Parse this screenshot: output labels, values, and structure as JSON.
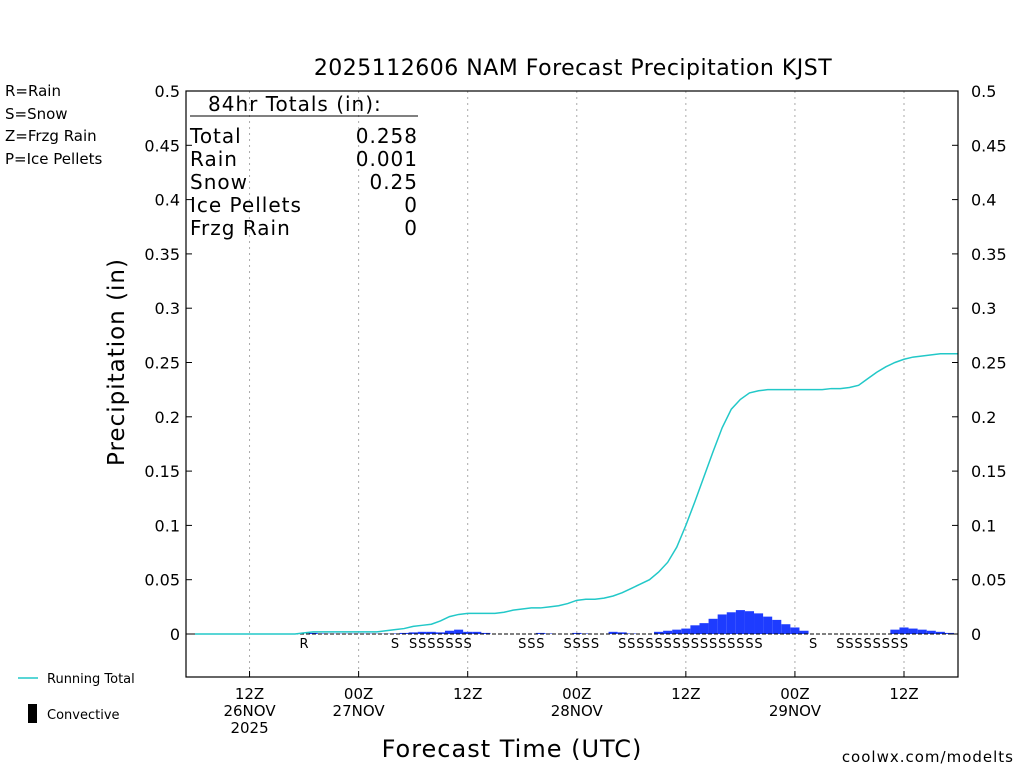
{
  "chart_data": {
    "type": "bar",
    "title": "2025112606 NAM Forecast Precipitation KJST",
    "ylabel": "Precipitation (in)",
    "xlabel": "Forecast Time (UTC)",
    "ylim": [
      -0.04,
      0.5
    ],
    "xlim": [
      0,
      84
    ],
    "yticks": [
      0,
      0.05,
      0.1,
      0.15,
      0.2,
      0.25,
      0.3,
      0.35,
      0.4,
      0.45,
      0.5
    ],
    "ytick_labels": [
      "0",
      "0.05",
      "0.1",
      "0.15",
      "0.2",
      "0.25",
      "0.3",
      "0.35",
      "0.4",
      "0.45",
      "0.5"
    ],
    "xticks": [
      {
        "hour": 6,
        "lines": [
          "12Z",
          "26NOV",
          "2025"
        ]
      },
      {
        "hour": 18,
        "lines": [
          "00Z",
          "27NOV"
        ]
      },
      {
        "hour": 30,
        "lines": [
          "12Z",
          ""
        ]
      },
      {
        "hour": 42,
        "lines": [
          "00Z",
          "28NOV"
        ]
      },
      {
        "hour": 54,
        "lines": [
          "12Z",
          ""
        ]
      },
      {
        "hour": 66,
        "lines": [
          "00Z",
          "29NOV"
        ]
      },
      {
        "hour": 78,
        "lines": [
          "12Z",
          ""
        ]
      }
    ],
    "legend": {
      "rain": {
        "label": "R=Rain",
        "color": "#22cc22"
      },
      "snow": {
        "label": "S=Snow",
        "color": "#4466ee"
      },
      "frzg": {
        "label": "Z=Frzg Rain",
        "color": "#ee8833"
      },
      "ice": {
        "label": "P=Ice Pellets",
        "color": "#ee2299"
      }
    },
    "bottom_legend": {
      "running_total": "Running Total",
      "convective": "Convective"
    },
    "totals": {
      "heading": "84hr Totals (in):",
      "rows": [
        {
          "label": "Total",
          "value": "0.258"
        },
        {
          "label": "Rain",
          "value": "0.001"
        },
        {
          "label": "Snow",
          "value": "0.25"
        },
        {
          "label": "Ice Pellets",
          "value": "0"
        },
        {
          "label": "Frzg Rain",
          "value": "0"
        }
      ]
    },
    "bar_color": "#1e3cff",
    "line_color": "#22c8c8",
    "hourly_precip": [
      0,
      0,
      0,
      0,
      0,
      0,
      0,
      0,
      0,
      0,
      0,
      0,
      0.001,
      0.0005,
      0.0003,
      0.0003,
      0.0003,
      0.0003,
      0.0003,
      0.0003,
      0.0003,
      0.0005,
      0.001,
      0.0015,
      0.002,
      0.002,
      0.0015,
      0.003,
      0.004,
      0.002,
      0.002,
      0.001,
      0,
      0,
      0,
      0,
      0,
      0.001,
      0.0005,
      0,
      0,
      0.001,
      0.0005,
      0,
      0,
      0.002,
      0.0015,
      0.0005,
      0,
      0,
      0.002,
      0.003,
      0.004,
      0.005,
      0.008,
      0.01,
      0.014,
      0.018,
      0.02,
      0.022,
      0.021,
      0.019,
      0.016,
      0.013,
      0.009,
      0.006,
      0.003,
      0,
      0,
      0,
      0,
      0,
      0,
      0,
      0,
      0,
      0.004,
      0.006,
      0.005,
      0.004,
      0.003,
      0.002,
      0.001,
      0
    ],
    "running_total": [
      0,
      0,
      0,
      0,
      0,
      0,
      0,
      0,
      0,
      0,
      0,
      0,
      0.001,
      0.002,
      0.002,
      0.002,
      0.002,
      0.002,
      0.002,
      0.002,
      0.002,
      0.003,
      0.004,
      0.005,
      0.007,
      0.008,
      0.009,
      0.012,
      0.016,
      0.018,
      0.019,
      0.019,
      0.019,
      0.019,
      0.02,
      0.022,
      0.023,
      0.024,
      0.024,
      0.025,
      0.026,
      0.028,
      0.031,
      0.032,
      0.032,
      0.033,
      0.035,
      0.038,
      0.042,
      0.046,
      0.05,
      0.057,
      0.066,
      0.08,
      0.1,
      0.122,
      0.145,
      0.168,
      0.19,
      0.207,
      0.216,
      0.222,
      0.224,
      0.225,
      0.225,
      0.225,
      0.225,
      0.225,
      0.225,
      0.225,
      0.226,
      0.226,
      0.227,
      0.229,
      0.235,
      0.241,
      0.246,
      0.25,
      0.253,
      0.255,
      0.256,
      0.257,
      0.258,
      0.258,
      0.258
    ],
    "ptype_markers": [
      {
        "hour": 12,
        "type": "R"
      },
      {
        "hour": 22,
        "type": "S"
      },
      {
        "hour": 24,
        "type": "S"
      },
      {
        "hour": 25,
        "type": "S"
      },
      {
        "hour": 26,
        "type": "S"
      },
      {
        "hour": 27,
        "type": "S"
      },
      {
        "hour": 28,
        "type": "S"
      },
      {
        "hour": 29,
        "type": "S"
      },
      {
        "hour": 30,
        "type": "S"
      },
      {
        "hour": 36,
        "type": "S"
      },
      {
        "hour": 37,
        "type": "S"
      },
      {
        "hour": 38,
        "type": "S"
      },
      {
        "hour": 41,
        "type": "S"
      },
      {
        "hour": 42,
        "type": "S"
      },
      {
        "hour": 43,
        "type": "S"
      },
      {
        "hour": 44,
        "type": "S"
      },
      {
        "hour": 47,
        "type": "S"
      },
      {
        "hour": 48,
        "type": "S"
      },
      {
        "hour": 49,
        "type": "S"
      },
      {
        "hour": 50,
        "type": "S"
      },
      {
        "hour": 51,
        "type": "S"
      },
      {
        "hour": 52,
        "type": "S"
      },
      {
        "hour": 53,
        "type": "S"
      },
      {
        "hour": 54,
        "type": "S"
      },
      {
        "hour": 55,
        "type": "S"
      },
      {
        "hour": 56,
        "type": "S"
      },
      {
        "hour": 57,
        "type": "S"
      },
      {
        "hour": 58,
        "type": "S"
      },
      {
        "hour": 59,
        "type": "S"
      },
      {
        "hour": 60,
        "type": "S"
      },
      {
        "hour": 61,
        "type": "S"
      },
      {
        "hour": 62,
        "type": "S"
      },
      {
        "hour": 68,
        "type": "S"
      },
      {
        "hour": 71,
        "type": "S"
      },
      {
        "hour": 72,
        "type": "S"
      },
      {
        "hour": 73,
        "type": "S"
      },
      {
        "hour": 74,
        "type": "S"
      },
      {
        "hour": 75,
        "type": "S"
      },
      {
        "hour": 76,
        "type": "S"
      },
      {
        "hour": 77,
        "type": "S"
      },
      {
        "hour": 78,
        "type": "S"
      }
    ]
  },
  "footer": {
    "credit": "coolwx.com/modelts"
  }
}
